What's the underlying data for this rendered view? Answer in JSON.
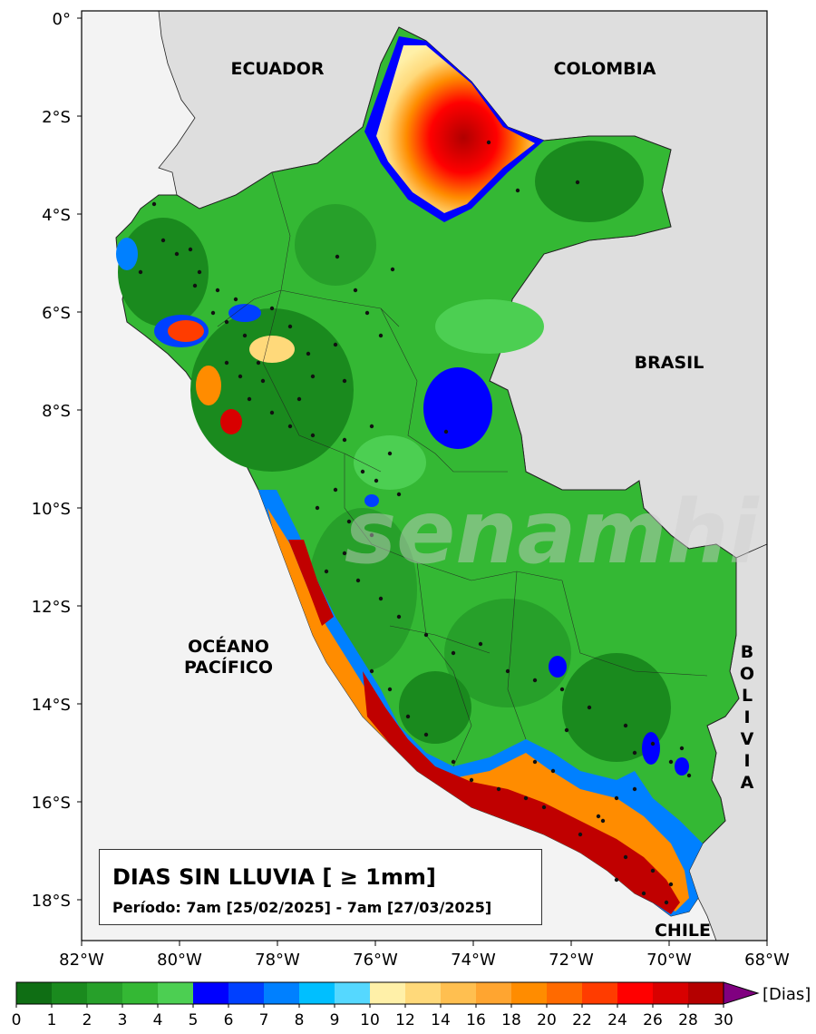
{
  "map": {
    "lat_ticks": [
      "0°",
      "2°S",
      "4°S",
      "6°S",
      "8°S",
      "10°S",
      "12°S",
      "14°S",
      "16°S",
      "18°S"
    ],
    "lon_ticks": [
      "82°W",
      "80°W",
      "78°W",
      "76°W",
      "74°W",
      "72°W",
      "70°W",
      "68°W"
    ],
    "labels": {
      "ecuador": "ECUADOR",
      "colombia": "COLOMBIA",
      "brasil": "BRASIL",
      "chile": "CHILE",
      "oceano_1": "OCÉANO",
      "oceano_2": "PACÍFICO",
      "bolivia": [
        "B",
        "O",
        "L",
        "I",
        "V",
        "I",
        "A"
      ]
    },
    "watermark": "senamhi"
  },
  "title": {
    "main": "DIAS SIN LLUVIA [ ≥ 1mm]",
    "period": "Período: 7am [25/02/2025] - 7am [27/03/2025]"
  },
  "colorbar": {
    "unit": "[Dias]",
    "ticks": [
      "0",
      "1",
      "2",
      "3",
      "4",
      "5",
      "6",
      "7",
      "8",
      "9",
      "10",
      "12",
      "14",
      "16",
      "18",
      "20",
      "22",
      "24",
      "26",
      "28",
      "30"
    ],
    "colors": [
      "#0f6e14",
      "#1a8a1e",
      "#27a02a",
      "#34b834",
      "#4ccf52",
      "#0000ff",
      "#0040ff",
      "#0080ff",
      "#00bfff",
      "#55d8ff",
      "#fff0a8",
      "#ffd97a",
      "#ffbf50",
      "#ffa530",
      "#ff8c00",
      "#ff6a00",
      "#ff3c00",
      "#ff0000",
      "#d80000",
      "#b40000"
    ],
    "extend_color": "#800080"
  }
}
